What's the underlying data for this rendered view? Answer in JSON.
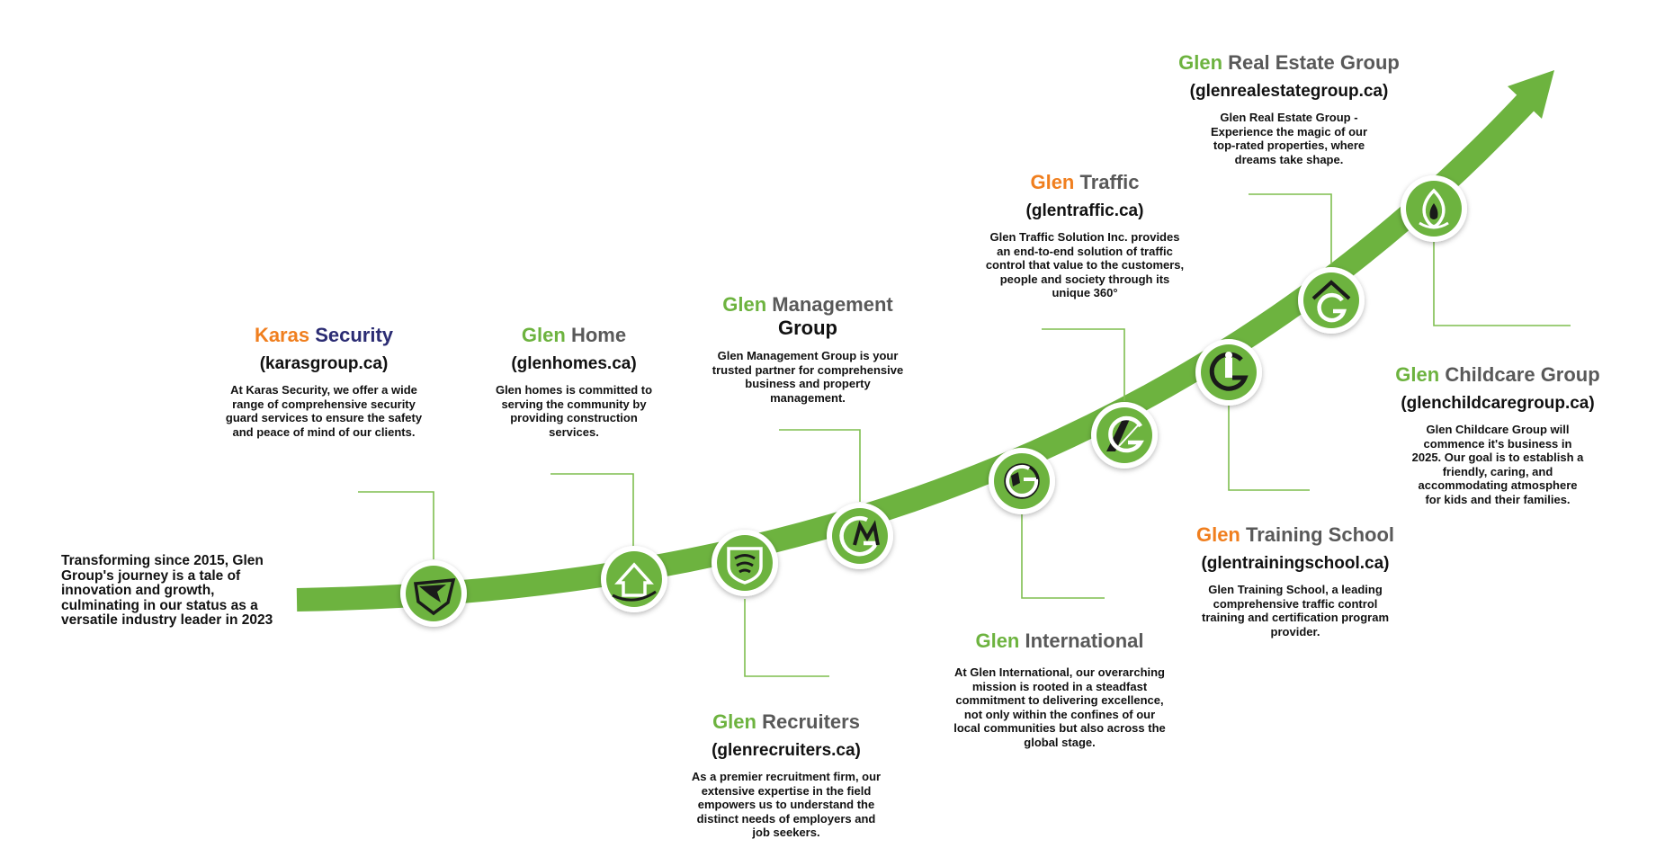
{
  "intro": "Transforming since 2015, Glen Group's journey is a tale of innovation and growth, culminating in our status as a versatile industry leader in 2023",
  "colors": {
    "green": "#6db33f",
    "orange": "#f07f1f",
    "navy": "#2b2c73",
    "gray": "#595959"
  },
  "companies": [
    {
      "brand": "Karas",
      "rest": "Security",
      "url": "(karasgroup.ca)",
      "desc": "At Karas Security, we offer a wide range of comprehensive security guard services to ensure the safety and peace of mind of our clients.",
      "icon": "eagle-shield-icon"
    },
    {
      "brand": "Glen",
      "rest": "Home",
      "url": "(glenhomes.ca)",
      "desc": "Glen homes is committed to serving the community by providing construction services.",
      "icon": "house-icon"
    },
    {
      "brand": "Glen",
      "rest": "Recruiters",
      "url": "(glenrecruiters.ca)",
      "desc": "As a premier recruitment firm, our extensive expertise in the field empowers us to understand the distinct needs of employers and job seekers.",
      "icon": "recruiters-shield-icon"
    },
    {
      "brand": "Glen",
      "rest": "Management",
      "rest2": "Group",
      "desc": "Glen Management Group is your trusted partner for comprehensive business and property management.",
      "icon": "gm-monogram-icon"
    },
    {
      "brand": "Glen",
      "rest": "International",
      "desc": "At Glen International, our overarching mission is rooted in a steadfast commitment to delivering excellence, not only within the confines of our local communities but also across the global stage.",
      "icon": "globe-icon"
    },
    {
      "brand": "Glen",
      "rest": "Traffic",
      "url": "(glentraffic.ca)",
      "desc": "Glen Traffic Solution Inc. provides an end-to-end solution of traffic control that value to the customers, people and society through its unique 360°",
      "icon": "road-g-icon"
    },
    {
      "brand": "Glen",
      "rest": "Training School",
      "url": "(glentrainingschool.ca)",
      "desc": "Glen Training School, a leading comprehensive traffic control training and certification program provider.",
      "icon": "training-g-icon"
    },
    {
      "brand": "Glen",
      "rest": "Real Estate Group",
      "url": "(glenrealestategroup.ca)",
      "desc": "Glen Real Estate Group - Experience the magic of our top-rated properties, where dreams take shape.",
      "icon": "house-g-icon"
    },
    {
      "brand": "Glen",
      "rest": "Childcare Group",
      "url": "(glenchildcaregroup.ca)",
      "desc": "Glen Childcare Group will commence it's business in 2025. Our goal is to establish a friendly, caring, and accommodating atmosphere for kids and their families.",
      "icon": "child-flame-icon"
    }
  ]
}
